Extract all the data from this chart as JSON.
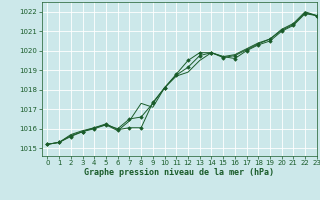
{
  "title": "Graphe pression niveau de la mer (hPa)",
  "xlim": [
    -0.5,
    23
  ],
  "ylim": [
    1014.6,
    1022.5
  ],
  "yticks": [
    1015,
    1016,
    1017,
    1018,
    1019,
    1020,
    1021,
    1022
  ],
  "xticks": [
    0,
    1,
    2,
    3,
    4,
    5,
    6,
    7,
    8,
    9,
    10,
    11,
    12,
    13,
    14,
    15,
    16,
    17,
    18,
    19,
    20,
    21,
    22,
    23
  ],
  "background_color": "#cce8ea",
  "grid_color": "#b0d8da",
  "line_color": "#1a5c2a",
  "marker_color": "#1a5c2a",
  "series1_x": [
    0,
    1,
    2,
    3,
    4,
    5,
    6,
    7,
    8,
    9,
    10,
    11,
    12,
    13,
    14,
    15,
    16,
    17,
    18,
    19,
    20,
    21,
    22,
    23
  ],
  "series1_y": [
    1015.2,
    1015.3,
    1015.65,
    1015.85,
    1016.05,
    1016.25,
    1015.95,
    1016.05,
    1016.05,
    1017.35,
    1018.1,
    1018.75,
    1019.15,
    1019.75,
    1019.9,
    1019.65,
    1019.75,
    1020.05,
    1020.35,
    1020.6,
    1021.05,
    1021.35,
    1021.95,
    1021.8
  ],
  "series2_x": [
    0,
    1,
    2,
    3,
    4,
    5,
    6,
    7,
    8,
    9,
    10,
    11,
    12,
    13,
    14,
    15,
    16,
    17,
    18,
    19,
    20,
    21,
    22,
    23
  ],
  "series2_y": [
    1015.2,
    1015.3,
    1015.6,
    1015.85,
    1016.0,
    1016.2,
    1016.0,
    1016.5,
    1016.6,
    1017.3,
    1018.1,
    1018.8,
    1019.5,
    1019.9,
    1019.9,
    1019.7,
    1019.6,
    1020.0,
    1020.3,
    1020.5,
    1021.0,
    1021.3,
    1021.9,
    1021.8
  ],
  "series3_x": [
    0,
    1,
    2,
    3,
    4,
    5,
    6,
    7,
    8,
    9,
    10,
    11,
    12,
    13,
    14,
    15,
    16,
    17,
    18,
    19,
    20,
    21,
    22,
    23
  ],
  "series3_y": [
    1015.2,
    1015.3,
    1015.7,
    1015.9,
    1016.05,
    1016.2,
    1015.9,
    1016.4,
    1017.3,
    1017.1,
    1018.1,
    1018.7,
    1018.9,
    1019.5,
    1019.9,
    1019.7,
    1019.8,
    1020.1,
    1020.4,
    1020.6,
    1021.1,
    1021.4,
    1022.0,
    1021.8
  ]
}
